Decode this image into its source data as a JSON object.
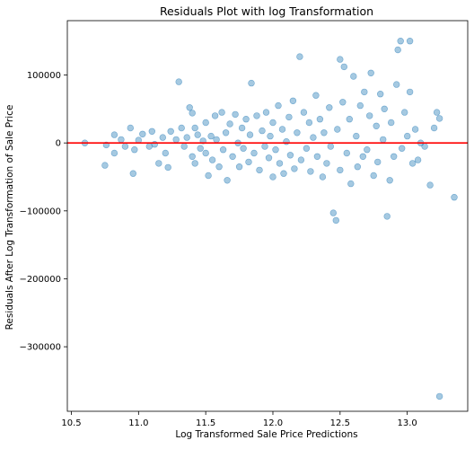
{
  "chart_data": {
    "type": "scatter",
    "title": "Residuals Plot with log Transformation",
    "xlabel": "Log Transformed Sale Price Predictions",
    "ylabel": "Residuals After Log Transformation of Sale Price",
    "xlim": [
      10.47,
      13.45
    ],
    "ylim": [
      -395000,
      180000
    ],
    "xticks": [
      10.5,
      11.0,
      11.5,
      12.0,
      12.5,
      13.0
    ],
    "xtick_labels": [
      "10.5",
      "11.0",
      "11.5",
      "12.0",
      "12.5",
      "13.0"
    ],
    "yticks": [
      100000,
      0,
      -100000,
      -200000,
      -300000
    ],
    "ytick_labels": [
      "100000",
      "0",
      "−100000",
      "−200000",
      "−300000"
    ],
    "grid": false,
    "point_color": "#1f77b4",
    "point_alpha": 0.4,
    "reference_line": {
      "y": 0,
      "color": "#ff0000"
    },
    "series": [
      {
        "points": [
          [
            10.6,
            0
          ],
          [
            10.75,
            -33000
          ],
          [
            10.76,
            -3000
          ],
          [
            10.82,
            12000
          ],
          [
            10.82,
            -15000
          ],
          [
            10.87,
            5000
          ],
          [
            10.9,
            -5000
          ],
          [
            10.94,
            22000
          ],
          [
            10.96,
            -45000
          ],
          [
            10.97,
            -10000
          ],
          [
            11.0,
            4000
          ],
          [
            11.03,
            13000
          ],
          [
            11.08,
            -5000
          ],
          [
            11.1,
            17000
          ],
          [
            11.12,
            -2000
          ],
          [
            11.15,
            -30000
          ],
          [
            11.18,
            8000
          ],
          [
            11.2,
            -15000
          ],
          [
            11.22,
            -36000
          ],
          [
            11.24,
            17000
          ],
          [
            11.28,
            5000
          ],
          [
            11.3,
            90000
          ],
          [
            11.32,
            22000
          ],
          [
            11.34,
            -5000
          ],
          [
            11.36,
            8000
          ],
          [
            11.38,
            52000
          ],
          [
            11.4,
            -20000
          ],
          [
            11.4,
            44000
          ],
          [
            11.42,
            -30000
          ],
          [
            11.42,
            22000
          ],
          [
            11.44,
            12000
          ],
          [
            11.46,
            -8000
          ],
          [
            11.48,
            3000
          ],
          [
            11.5,
            -15000
          ],
          [
            11.5,
            30000
          ],
          [
            11.52,
            -48000
          ],
          [
            11.54,
            10000
          ],
          [
            11.55,
            -25000
          ],
          [
            11.57,
            40000
          ],
          [
            11.58,
            5000
          ],
          [
            11.6,
            -35000
          ],
          [
            11.62,
            45000
          ],
          [
            11.63,
            -10000
          ],
          [
            11.65,
            15000
          ],
          [
            11.66,
            -55000
          ],
          [
            11.68,
            28000
          ],
          [
            11.7,
            -20000
          ],
          [
            11.72,
            42000
          ],
          [
            11.74,
            0
          ],
          [
            11.75,
            -35000
          ],
          [
            11.77,
            22000
          ],
          [
            11.78,
            -8000
          ],
          [
            11.8,
            35000
          ],
          [
            11.82,
            -28000
          ],
          [
            11.83,
            12000
          ],
          [
            11.84,
            88000
          ],
          [
            11.86,
            -15000
          ],
          [
            11.88,
            40000
          ],
          [
            11.9,
            -40000
          ],
          [
            11.92,
            18000
          ],
          [
            11.94,
            -5000
          ],
          [
            11.95,
            45000
          ],
          [
            11.97,
            -22000
          ],
          [
            11.98,
            10000
          ],
          [
            12.0,
            -50000
          ],
          [
            12.0,
            30000
          ],
          [
            12.02,
            -10000
          ],
          [
            12.04,
            55000
          ],
          [
            12.05,
            -30000
          ],
          [
            12.07,
            20000
          ],
          [
            12.08,
            -45000
          ],
          [
            12.1,
            2000
          ],
          [
            12.12,
            38000
          ],
          [
            12.13,
            -18000
          ],
          [
            12.15,
            62000
          ],
          [
            12.16,
            -38000
          ],
          [
            12.18,
            15000
          ],
          [
            12.2,
            127000
          ],
          [
            12.21,
            -25000
          ],
          [
            12.23,
            45000
          ],
          [
            12.25,
            -8000
          ],
          [
            12.27,
            30000
          ],
          [
            12.28,
            -42000
          ],
          [
            12.3,
            8000
          ],
          [
            12.32,
            70000
          ],
          [
            12.33,
            -20000
          ],
          [
            12.35,
            35000
          ],
          [
            12.37,
            -50000
          ],
          [
            12.38,
            15000
          ],
          [
            12.4,
            -30000
          ],
          [
            12.42,
            52000
          ],
          [
            12.43,
            -5000
          ],
          [
            12.45,
            -103000
          ],
          [
            12.47,
            -114000
          ],
          [
            12.48,
            20000
          ],
          [
            12.5,
            -40000
          ],
          [
            12.5,
            123000
          ],
          [
            12.52,
            60000
          ],
          [
            12.53,
            112000
          ],
          [
            12.55,
            -15000
          ],
          [
            12.57,
            35000
          ],
          [
            12.58,
            -60000
          ],
          [
            12.6,
            98000
          ],
          [
            12.62,
            10000
          ],
          [
            12.63,
            -35000
          ],
          [
            12.65,
            55000
          ],
          [
            12.67,
            -20000
          ],
          [
            12.68,
            75000
          ],
          [
            12.7,
            -10000
          ],
          [
            12.72,
            40000
          ],
          [
            12.73,
            103000
          ],
          [
            12.75,
            -48000
          ],
          [
            12.77,
            25000
          ],
          [
            12.78,
            -28000
          ],
          [
            12.8,
            72000
          ],
          [
            12.82,
            5000
          ],
          [
            12.83,
            50000
          ],
          [
            12.85,
            -108000
          ],
          [
            12.87,
            -55000
          ],
          [
            12.88,
            30000
          ],
          [
            12.9,
            -20000
          ],
          [
            12.92,
            86000
          ],
          [
            12.93,
            137000
          ],
          [
            12.95,
            150000
          ],
          [
            12.96,
            -8000
          ],
          [
            12.98,
            45000
          ],
          [
            13.0,
            10000
          ],
          [
            13.02,
            150000
          ],
          [
            13.02,
            75000
          ],
          [
            13.04,
            -30000
          ],
          [
            13.06,
            20000
          ],
          [
            13.08,
            -25000
          ],
          [
            13.1,
            0
          ],
          [
            13.13,
            -5000
          ],
          [
            13.17,
            -62000
          ],
          [
            13.2,
            22000
          ],
          [
            13.22,
            45000
          ],
          [
            13.24,
            36000
          ],
          [
            13.24,
            -373000
          ],
          [
            13.35,
            -80000
          ]
        ]
      }
    ]
  }
}
